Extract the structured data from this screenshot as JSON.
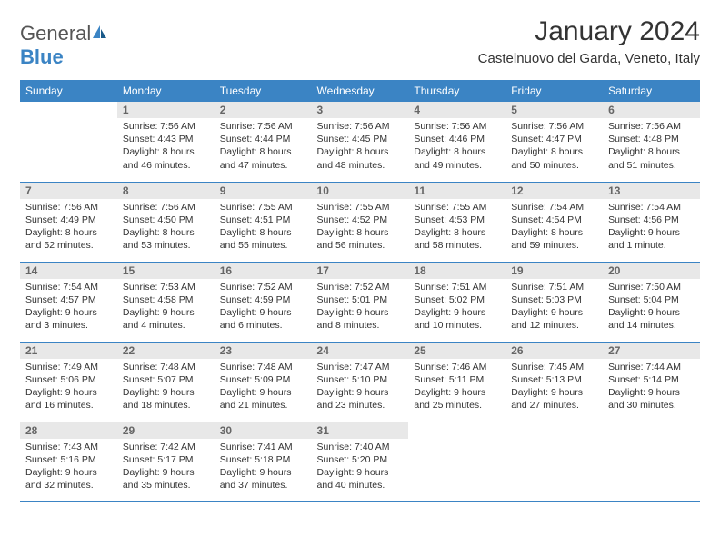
{
  "logo": {
    "text1": "General",
    "text2": "Blue"
  },
  "header": {
    "title": "January 2024",
    "location": "Castelnuovo del Garda, Veneto, Italy"
  },
  "colors": {
    "header_bg": "#3b84c4",
    "header_text": "#ffffff",
    "daynum_bg": "#e8e8e8",
    "row_border": "#3b84c4"
  },
  "weekdays": [
    "Sunday",
    "Monday",
    "Tuesday",
    "Wednesday",
    "Thursday",
    "Friday",
    "Saturday"
  ],
  "weeks": [
    [
      null,
      {
        "n": "1",
        "sr": "7:56 AM",
        "ss": "4:43 PM",
        "dl": "8 hours and 46 minutes."
      },
      {
        "n": "2",
        "sr": "7:56 AM",
        "ss": "4:44 PM",
        "dl": "8 hours and 47 minutes."
      },
      {
        "n": "3",
        "sr": "7:56 AM",
        "ss": "4:45 PM",
        "dl": "8 hours and 48 minutes."
      },
      {
        "n": "4",
        "sr": "7:56 AM",
        "ss": "4:46 PM",
        "dl": "8 hours and 49 minutes."
      },
      {
        "n": "5",
        "sr": "7:56 AM",
        "ss": "4:47 PM",
        "dl": "8 hours and 50 minutes."
      },
      {
        "n": "6",
        "sr": "7:56 AM",
        "ss": "4:48 PM",
        "dl": "8 hours and 51 minutes."
      }
    ],
    [
      {
        "n": "7",
        "sr": "7:56 AM",
        "ss": "4:49 PM",
        "dl": "8 hours and 52 minutes."
      },
      {
        "n": "8",
        "sr": "7:56 AM",
        "ss": "4:50 PM",
        "dl": "8 hours and 53 minutes."
      },
      {
        "n": "9",
        "sr": "7:55 AM",
        "ss": "4:51 PM",
        "dl": "8 hours and 55 minutes."
      },
      {
        "n": "10",
        "sr": "7:55 AM",
        "ss": "4:52 PM",
        "dl": "8 hours and 56 minutes."
      },
      {
        "n": "11",
        "sr": "7:55 AM",
        "ss": "4:53 PM",
        "dl": "8 hours and 58 minutes."
      },
      {
        "n": "12",
        "sr": "7:54 AM",
        "ss": "4:54 PM",
        "dl": "8 hours and 59 minutes."
      },
      {
        "n": "13",
        "sr": "7:54 AM",
        "ss": "4:56 PM",
        "dl": "9 hours and 1 minute."
      }
    ],
    [
      {
        "n": "14",
        "sr": "7:54 AM",
        "ss": "4:57 PM",
        "dl": "9 hours and 3 minutes."
      },
      {
        "n": "15",
        "sr": "7:53 AM",
        "ss": "4:58 PM",
        "dl": "9 hours and 4 minutes."
      },
      {
        "n": "16",
        "sr": "7:52 AM",
        "ss": "4:59 PM",
        "dl": "9 hours and 6 minutes."
      },
      {
        "n": "17",
        "sr": "7:52 AM",
        "ss": "5:01 PM",
        "dl": "9 hours and 8 minutes."
      },
      {
        "n": "18",
        "sr": "7:51 AM",
        "ss": "5:02 PM",
        "dl": "9 hours and 10 minutes."
      },
      {
        "n": "19",
        "sr": "7:51 AM",
        "ss": "5:03 PM",
        "dl": "9 hours and 12 minutes."
      },
      {
        "n": "20",
        "sr": "7:50 AM",
        "ss": "5:04 PM",
        "dl": "9 hours and 14 minutes."
      }
    ],
    [
      {
        "n": "21",
        "sr": "7:49 AM",
        "ss": "5:06 PM",
        "dl": "9 hours and 16 minutes."
      },
      {
        "n": "22",
        "sr": "7:48 AM",
        "ss": "5:07 PM",
        "dl": "9 hours and 18 minutes."
      },
      {
        "n": "23",
        "sr": "7:48 AM",
        "ss": "5:09 PM",
        "dl": "9 hours and 21 minutes."
      },
      {
        "n": "24",
        "sr": "7:47 AM",
        "ss": "5:10 PM",
        "dl": "9 hours and 23 minutes."
      },
      {
        "n": "25",
        "sr": "7:46 AM",
        "ss": "5:11 PM",
        "dl": "9 hours and 25 minutes."
      },
      {
        "n": "26",
        "sr": "7:45 AM",
        "ss": "5:13 PM",
        "dl": "9 hours and 27 minutes."
      },
      {
        "n": "27",
        "sr": "7:44 AM",
        "ss": "5:14 PM",
        "dl": "9 hours and 30 minutes."
      }
    ],
    [
      {
        "n": "28",
        "sr": "7:43 AM",
        "ss": "5:16 PM",
        "dl": "9 hours and 32 minutes."
      },
      {
        "n": "29",
        "sr": "7:42 AM",
        "ss": "5:17 PM",
        "dl": "9 hours and 35 minutes."
      },
      {
        "n": "30",
        "sr": "7:41 AM",
        "ss": "5:18 PM",
        "dl": "9 hours and 37 minutes."
      },
      {
        "n": "31",
        "sr": "7:40 AM",
        "ss": "5:20 PM",
        "dl": "9 hours and 40 minutes."
      },
      null,
      null,
      null
    ]
  ],
  "labels": {
    "sunrise": "Sunrise:",
    "sunset": "Sunset:",
    "daylight": "Daylight:"
  }
}
